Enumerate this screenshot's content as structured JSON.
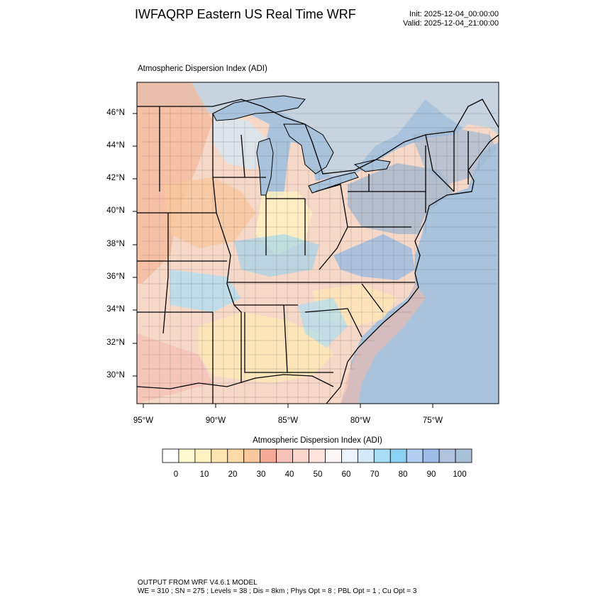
{
  "header": {
    "title": "IWFAQRP Eastern US Real Time WRF",
    "init_time": "Init: 2025-12-04_00:00:00",
    "valid_time": "Valid: 2025-12-04_21:00:00"
  },
  "map": {
    "plot_title": "Atmospheric Dispersion Index   (ADI)",
    "lat_labels": [
      "46°N",
      "44°N",
      "42°N",
      "40°N",
      "38°N",
      "36°N",
      "34°N",
      "32°N",
      "30°N"
    ],
    "lon_labels": [
      "95°W",
      "90°W",
      "85°W",
      "80°W",
      "75°W"
    ],
    "ocean_color": "#a9c3dc",
    "lake_color": "#a9c3dc"
  },
  "colorbar": {
    "title": "Atmospheric Dispersion Index  (ADI)",
    "labels": [
      "0",
      "10",
      "20",
      "30",
      "40",
      "50",
      "60",
      "70",
      "80",
      "90",
      "100"
    ],
    "colors": [
      "#ffffff",
      "#fffad2",
      "#fff1c2",
      "#ffe6b0",
      "#fdd9a8",
      "#f9c79c",
      "#f4aa96",
      "#f6c2b8",
      "#fad5cc",
      "#fde4de",
      "#fdf6f6",
      "#edf4fd",
      "#d3ebf8",
      "#a8def5",
      "#8ad1f3",
      "#b2cef0",
      "#9ebdeb",
      "#b0c2dd",
      "#a9c0d9"
    ]
  },
  "footer": {
    "line1": "OUTPUT FROM WRF V4.6.1 MODEL",
    "line2": "WE = 310 ; SN = 275 ; Levels = 38 ; Dis = 8km ; Phys Opt = 8 ; PBL Opt = 1 ; Cu Opt = 3"
  }
}
